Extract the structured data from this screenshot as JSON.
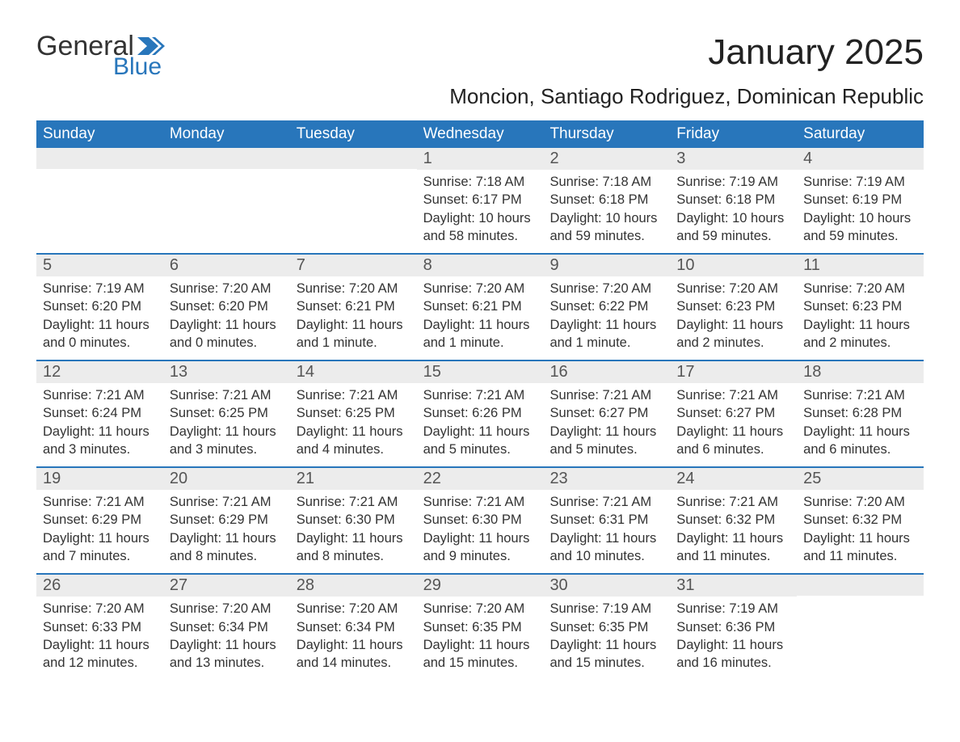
{
  "logo": {
    "text_general": "General",
    "text_blue": "Blue",
    "accent_color": "#2876bb"
  },
  "title": "January 2025",
  "subtitle": "Moncion, Santiago Rodriguez, Dominican Republic",
  "colors": {
    "header_bg": "#2876bb",
    "header_fg": "#ffffff",
    "daynum_bg": "#ececec",
    "text": "#333333",
    "week_divider": "#2876bb"
  },
  "days_of_week": [
    "Sunday",
    "Monday",
    "Tuesday",
    "Wednesday",
    "Thursday",
    "Friday",
    "Saturday"
  ],
  "weeks": [
    [
      {
        "n": "",
        "sunrise": "",
        "sunset": "",
        "daylight": ""
      },
      {
        "n": "",
        "sunrise": "",
        "sunset": "",
        "daylight": ""
      },
      {
        "n": "",
        "sunrise": "",
        "sunset": "",
        "daylight": ""
      },
      {
        "n": "1",
        "sunrise": "Sunrise: 7:18 AM",
        "sunset": "Sunset: 6:17 PM",
        "daylight": "Daylight: 10 hours and 58 minutes."
      },
      {
        "n": "2",
        "sunrise": "Sunrise: 7:18 AM",
        "sunset": "Sunset: 6:18 PM",
        "daylight": "Daylight: 10 hours and 59 minutes."
      },
      {
        "n": "3",
        "sunrise": "Sunrise: 7:19 AM",
        "sunset": "Sunset: 6:18 PM",
        "daylight": "Daylight: 10 hours and 59 minutes."
      },
      {
        "n": "4",
        "sunrise": "Sunrise: 7:19 AM",
        "sunset": "Sunset: 6:19 PM",
        "daylight": "Daylight: 10 hours and 59 minutes."
      }
    ],
    [
      {
        "n": "5",
        "sunrise": "Sunrise: 7:19 AM",
        "sunset": "Sunset: 6:20 PM",
        "daylight": "Daylight: 11 hours and 0 minutes."
      },
      {
        "n": "6",
        "sunrise": "Sunrise: 7:20 AM",
        "sunset": "Sunset: 6:20 PM",
        "daylight": "Daylight: 11 hours and 0 minutes."
      },
      {
        "n": "7",
        "sunrise": "Sunrise: 7:20 AM",
        "sunset": "Sunset: 6:21 PM",
        "daylight": "Daylight: 11 hours and 1 minute."
      },
      {
        "n": "8",
        "sunrise": "Sunrise: 7:20 AM",
        "sunset": "Sunset: 6:21 PM",
        "daylight": "Daylight: 11 hours and 1 minute."
      },
      {
        "n": "9",
        "sunrise": "Sunrise: 7:20 AM",
        "sunset": "Sunset: 6:22 PM",
        "daylight": "Daylight: 11 hours and 1 minute."
      },
      {
        "n": "10",
        "sunrise": "Sunrise: 7:20 AM",
        "sunset": "Sunset: 6:23 PM",
        "daylight": "Daylight: 11 hours and 2 minutes."
      },
      {
        "n": "11",
        "sunrise": "Sunrise: 7:20 AM",
        "sunset": "Sunset: 6:23 PM",
        "daylight": "Daylight: 11 hours and 2 minutes."
      }
    ],
    [
      {
        "n": "12",
        "sunrise": "Sunrise: 7:21 AM",
        "sunset": "Sunset: 6:24 PM",
        "daylight": "Daylight: 11 hours and 3 minutes."
      },
      {
        "n": "13",
        "sunrise": "Sunrise: 7:21 AM",
        "sunset": "Sunset: 6:25 PM",
        "daylight": "Daylight: 11 hours and 3 minutes."
      },
      {
        "n": "14",
        "sunrise": "Sunrise: 7:21 AM",
        "sunset": "Sunset: 6:25 PM",
        "daylight": "Daylight: 11 hours and 4 minutes."
      },
      {
        "n": "15",
        "sunrise": "Sunrise: 7:21 AM",
        "sunset": "Sunset: 6:26 PM",
        "daylight": "Daylight: 11 hours and 5 minutes."
      },
      {
        "n": "16",
        "sunrise": "Sunrise: 7:21 AM",
        "sunset": "Sunset: 6:27 PM",
        "daylight": "Daylight: 11 hours and 5 minutes."
      },
      {
        "n": "17",
        "sunrise": "Sunrise: 7:21 AM",
        "sunset": "Sunset: 6:27 PM",
        "daylight": "Daylight: 11 hours and 6 minutes."
      },
      {
        "n": "18",
        "sunrise": "Sunrise: 7:21 AM",
        "sunset": "Sunset: 6:28 PM",
        "daylight": "Daylight: 11 hours and 6 minutes."
      }
    ],
    [
      {
        "n": "19",
        "sunrise": "Sunrise: 7:21 AM",
        "sunset": "Sunset: 6:29 PM",
        "daylight": "Daylight: 11 hours and 7 minutes."
      },
      {
        "n": "20",
        "sunrise": "Sunrise: 7:21 AM",
        "sunset": "Sunset: 6:29 PM",
        "daylight": "Daylight: 11 hours and 8 minutes."
      },
      {
        "n": "21",
        "sunrise": "Sunrise: 7:21 AM",
        "sunset": "Sunset: 6:30 PM",
        "daylight": "Daylight: 11 hours and 8 minutes."
      },
      {
        "n": "22",
        "sunrise": "Sunrise: 7:21 AM",
        "sunset": "Sunset: 6:30 PM",
        "daylight": "Daylight: 11 hours and 9 minutes."
      },
      {
        "n": "23",
        "sunrise": "Sunrise: 7:21 AM",
        "sunset": "Sunset: 6:31 PM",
        "daylight": "Daylight: 11 hours and 10 minutes."
      },
      {
        "n": "24",
        "sunrise": "Sunrise: 7:21 AM",
        "sunset": "Sunset: 6:32 PM",
        "daylight": "Daylight: 11 hours and 11 minutes."
      },
      {
        "n": "25",
        "sunrise": "Sunrise: 7:20 AM",
        "sunset": "Sunset: 6:32 PM",
        "daylight": "Daylight: 11 hours and 11 minutes."
      }
    ],
    [
      {
        "n": "26",
        "sunrise": "Sunrise: 7:20 AM",
        "sunset": "Sunset: 6:33 PM",
        "daylight": "Daylight: 11 hours and 12 minutes."
      },
      {
        "n": "27",
        "sunrise": "Sunrise: 7:20 AM",
        "sunset": "Sunset: 6:34 PM",
        "daylight": "Daylight: 11 hours and 13 minutes."
      },
      {
        "n": "28",
        "sunrise": "Sunrise: 7:20 AM",
        "sunset": "Sunset: 6:34 PM",
        "daylight": "Daylight: 11 hours and 14 minutes."
      },
      {
        "n": "29",
        "sunrise": "Sunrise: 7:20 AM",
        "sunset": "Sunset: 6:35 PM",
        "daylight": "Daylight: 11 hours and 15 minutes."
      },
      {
        "n": "30",
        "sunrise": "Sunrise: 7:19 AM",
        "sunset": "Sunset: 6:35 PM",
        "daylight": "Daylight: 11 hours and 15 minutes."
      },
      {
        "n": "31",
        "sunrise": "Sunrise: 7:19 AM",
        "sunset": "Sunset: 6:36 PM",
        "daylight": "Daylight: 11 hours and 16 minutes."
      },
      {
        "n": "",
        "sunrise": "",
        "sunset": "",
        "daylight": ""
      }
    ]
  ]
}
